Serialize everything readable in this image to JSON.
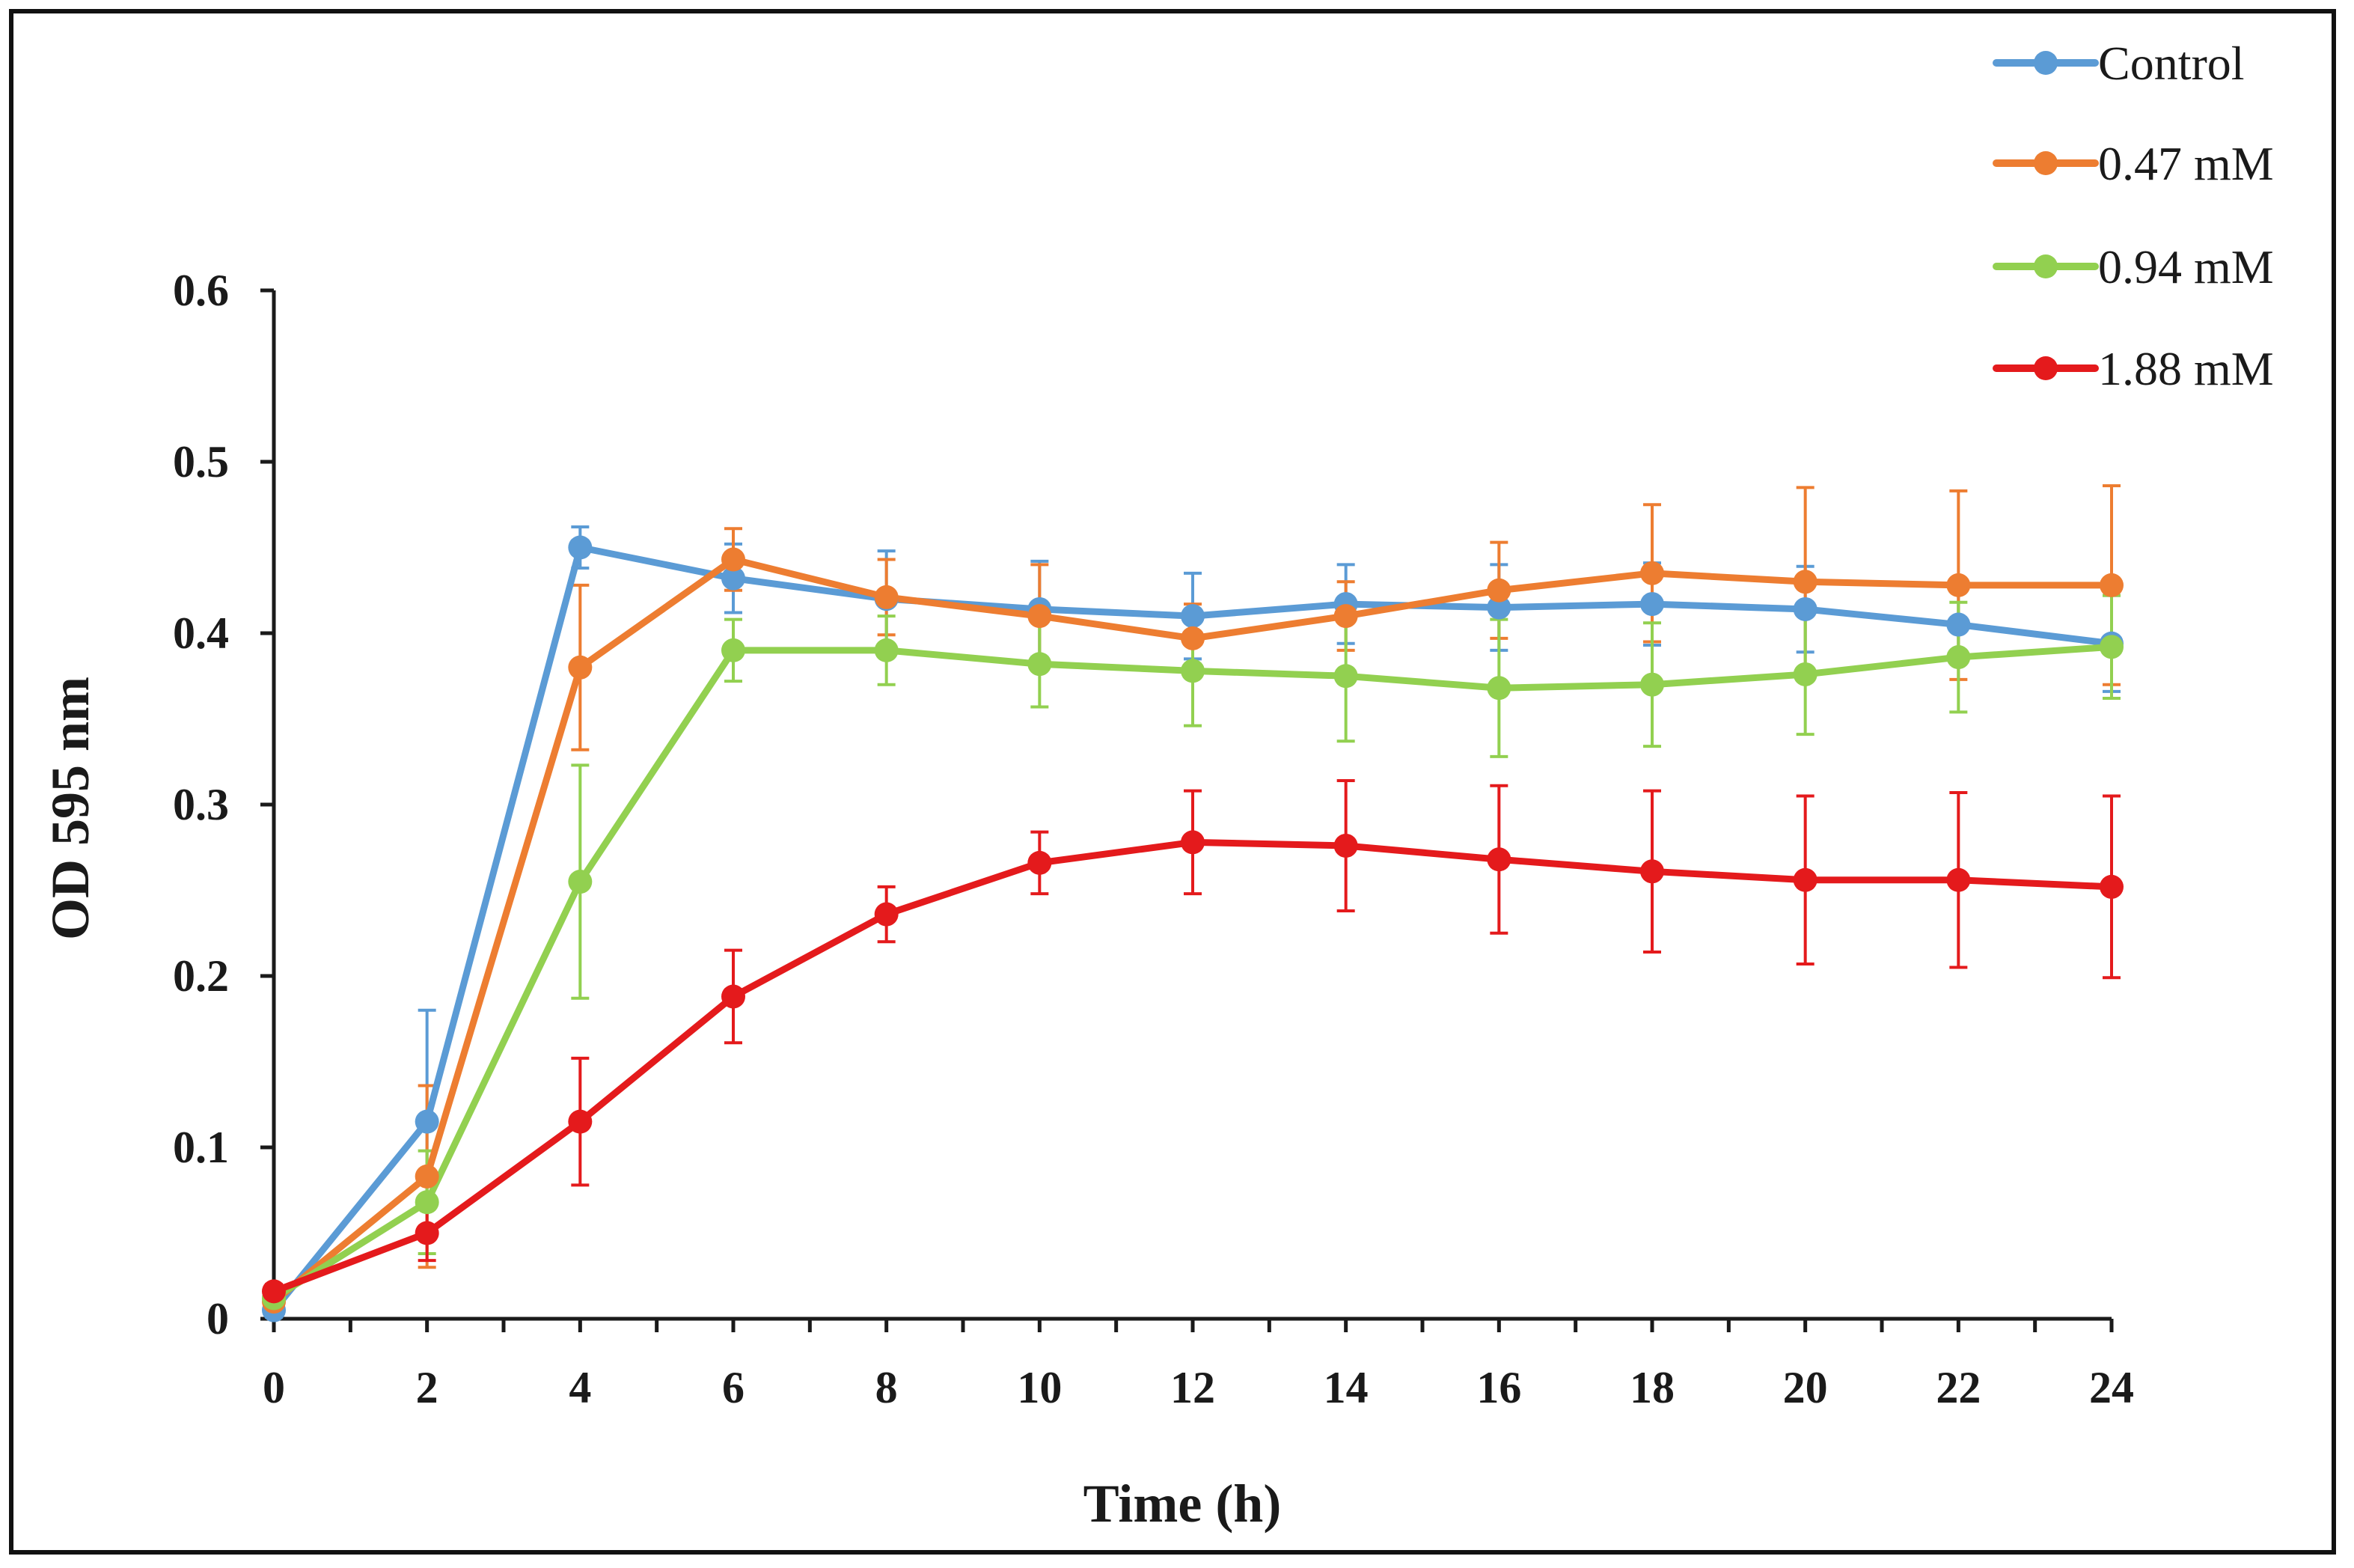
{
  "chart_data": {
    "type": "line",
    "title": "",
    "xlabel": "Time (h)",
    "ylabel": "OD 595 nm",
    "xlim": [
      0,
      24
    ],
    "ylim": [
      0,
      0.6
    ],
    "x": [
      0,
      2,
      4,
      6,
      8,
      10,
      12,
      14,
      16,
      18,
      20,
      22,
      24
    ],
    "x_ticks": [
      "0",
      "2",
      "4",
      "6",
      "8",
      "10",
      "12",
      "14",
      "16",
      "18",
      "20",
      "22",
      "24"
    ],
    "y_ticks": [
      "0",
      "0.1",
      "0.2",
      "0.3",
      "0.4",
      "0.5",
      "0.6"
    ],
    "y_tick_values": [
      0,
      0.1,
      0.2,
      0.3,
      0.4,
      0.5,
      0.6
    ],
    "grid": false,
    "legend_position": "top-right",
    "series": [
      {
        "name": "Control",
        "color": "#5b9bd5",
        "values": [
          0.005,
          0.115,
          0.45,
          0.432,
          0.42,
          0.414,
          0.41,
          0.417,
          0.415,
          0.417,
          0.414,
          0.405,
          0.394
        ],
        "errors": [
          0.004,
          0.065,
          0.012,
          0.02,
          0.028,
          0.028,
          0.025,
          0.023,
          0.025,
          0.024,
          0.025,
          0.022,
          0.028
        ]
      },
      {
        "name": "0.47 mM",
        "color": "#ed7d31",
        "values": [
          0.01,
          0.083,
          0.38,
          0.443,
          0.421,
          0.41,
          0.397,
          0.41,
          0.425,
          0.435,
          0.43,
          0.428,
          0.428
        ],
        "errors": [
          0.004,
          0.053,
          0.048,
          0.018,
          0.022,
          0.03,
          0.02,
          0.02,
          0.028,
          0.04,
          0.055,
          0.055,
          0.058
        ]
      },
      {
        "name": "0.94 mM",
        "color": "#92d050",
        "values": [
          0.012,
          0.068,
          0.255,
          0.39,
          0.39,
          0.382,
          0.378,
          0.375,
          0.368,
          0.37,
          0.376,
          0.386,
          0.392
        ],
        "errors": [
          0.004,
          0.03,
          0.068,
          0.018,
          0.02,
          0.025,
          0.032,
          0.038,
          0.04,
          0.036,
          0.035,
          0.032,
          0.03
        ]
      },
      {
        "name": "1.88 mM",
        "color": "#e41a1c",
        "values": [
          0.016,
          0.05,
          0.115,
          0.188,
          0.236,
          0.266,
          0.278,
          0.276,
          0.268,
          0.261,
          0.256,
          0.256,
          0.252
        ],
        "errors": [
          0.004,
          0.016,
          0.037,
          0.027,
          0.016,
          0.018,
          0.03,
          0.038,
          0.043,
          0.047,
          0.049,
          0.051,
          0.053
        ]
      }
    ]
  }
}
